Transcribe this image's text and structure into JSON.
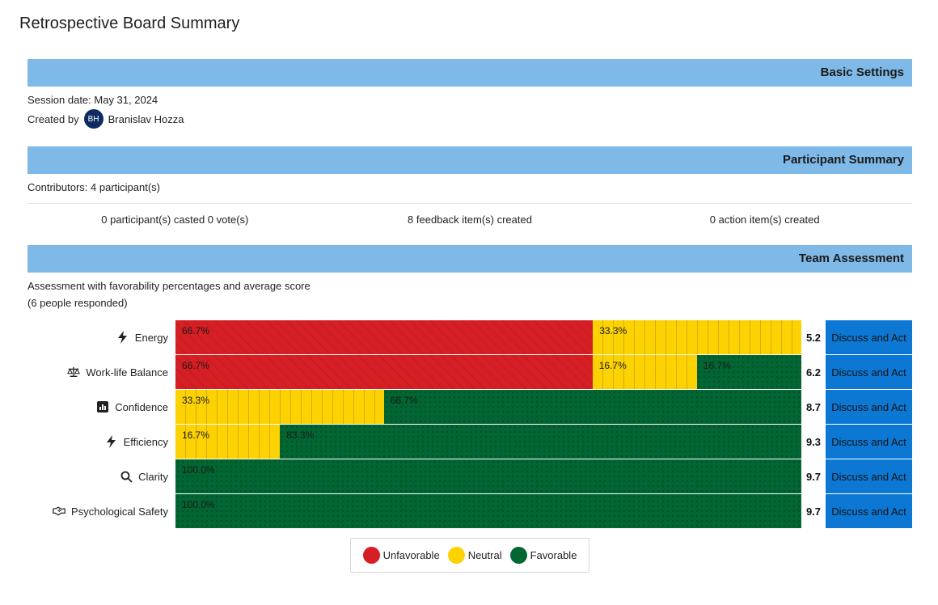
{
  "page": {
    "title": "Retrospective Board Summary"
  },
  "basic_settings": {
    "header": "Basic Settings",
    "session_date": "Session date: May 31, 2024",
    "created_by_label": "Created by",
    "avatar_initials": "BH",
    "creator_name": "Branislav Hozza"
  },
  "participant_summary": {
    "header": "Participant Summary",
    "contributors": "Contributors: 4 participant(s)",
    "votes": "0 participant(s) casted 0 vote(s)",
    "feedback": "8 feedback item(s) created",
    "actions": "0 action item(s) created"
  },
  "team_assessment": {
    "header": "Team Assessment",
    "description": "Assessment with favorability percentages and average score",
    "responded": "(6 people responded)",
    "discuss_label": "Discuss and Act"
  },
  "chart_data": {
    "type": "bar",
    "stacked": true,
    "orientation": "horizontal",
    "categories": [
      "Energy",
      "Work-life Balance",
      "Confidence",
      "Efficiency",
      "Clarity",
      "Psychological Safety"
    ],
    "category_icons": [
      "lightning-icon",
      "scale-icon",
      "chart-box-icon",
      "lightning-icon",
      "search-icon",
      "handshake-icon"
    ],
    "series": [
      {
        "name": "Unfavorable",
        "color": "#d51f24",
        "values": [
          66.7,
          66.7,
          0,
          0,
          0,
          0
        ],
        "labels": [
          "66.7%",
          "66.7%",
          "",
          "",
          "",
          ""
        ]
      },
      {
        "name": "Neutral",
        "color": "#fcd203",
        "values": [
          33.3,
          16.7,
          33.3,
          16.7,
          0,
          0
        ],
        "labels": [
          "33.3%",
          "16.7%",
          "33.3%",
          "16.7%",
          "",
          ""
        ]
      },
      {
        "name": "Favorable",
        "color": "#026633",
        "values": [
          0,
          16.7,
          66.7,
          83.3,
          100,
          100
        ],
        "labels": [
          "",
          "16.7%",
          "66.7%",
          "83.3%",
          "100.0%",
          "100.0%"
        ]
      }
    ],
    "average_scores": [
      "5.2",
      "6.2",
      "8.7",
      "9.3",
      "9.7",
      "9.7"
    ],
    "legend_position": "bottom-center"
  }
}
